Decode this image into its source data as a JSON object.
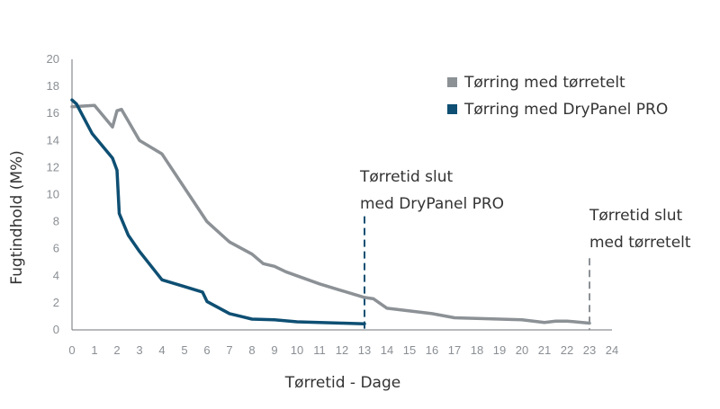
{
  "chart_data": {
    "type": "line",
    "xlabel": "Tørretid - Dage",
    "ylabel": "Fugtindhold (M%)",
    "xlim": [
      0,
      24
    ],
    "ylim": [
      0,
      20
    ],
    "xticks": [
      "0",
      "1",
      "2",
      "3",
      "4",
      "5",
      "6",
      "7",
      "8",
      "9",
      "10",
      "11",
      "12",
      "13",
      "14",
      "15",
      "16",
      "17",
      "18",
      "19",
      "20",
      "21",
      "22",
      "23",
      "24"
    ],
    "yticks": [
      "0",
      "2",
      "4",
      "6",
      "8",
      "10",
      "12",
      "14",
      "16",
      "18",
      "20"
    ],
    "grid": false,
    "legend_position": "top-right",
    "series": [
      {
        "name": "Tørring med tørretelt",
        "color": "#8c9196",
        "x": [
          0,
          1,
          1.8,
          2,
          2.2,
          3,
          4,
          5,
          6,
          7,
          8,
          8.5,
          9,
          9.5,
          10,
          11,
          12,
          13,
          13.4,
          14,
          15,
          16,
          17,
          18,
          19,
          20,
          21,
          21.5,
          22,
          23
        ],
        "y": [
          16.5,
          16.6,
          15,
          16.2,
          16.3,
          14,
          13,
          10.5,
          8,
          6.5,
          5.6,
          4.9,
          4.7,
          4.3,
          4,
          3.4,
          2.9,
          2.4,
          2.3,
          1.6,
          1.4,
          1.2,
          0.9,
          0.85,
          0.8,
          0.75,
          0.55,
          0.65,
          0.65,
          0.5
        ]
      },
      {
        "name": "Tørring med DryPanel PRO",
        "color": "#0e4f73",
        "x": [
          0,
          0.2,
          0.9,
          1.8,
          2,
          2.1,
          2.5,
          3,
          4,
          5,
          5.8,
          6,
          7,
          7.5,
          8,
          9,
          10,
          11,
          12,
          13
        ],
        "y": [
          17,
          16.7,
          14.5,
          12.7,
          11.8,
          8.6,
          7,
          5.8,
          3.7,
          3.2,
          2.8,
          2.1,
          1.2,
          1.0,
          0.8,
          0.75,
          0.6,
          0.55,
          0.5,
          0.45
        ]
      }
    ],
    "annotations": [
      {
        "x": 13,
        "lines": [
          "Tørretid slut",
          "med DryPanel PRO"
        ],
        "color": "#0e4f73",
        "y_top": 8.4
      },
      {
        "x": 23,
        "lines": [
          "Tørretid slut",
          "med tørretelt"
        ],
        "color": "#8c9196",
        "y_top": 5.3
      }
    ]
  }
}
